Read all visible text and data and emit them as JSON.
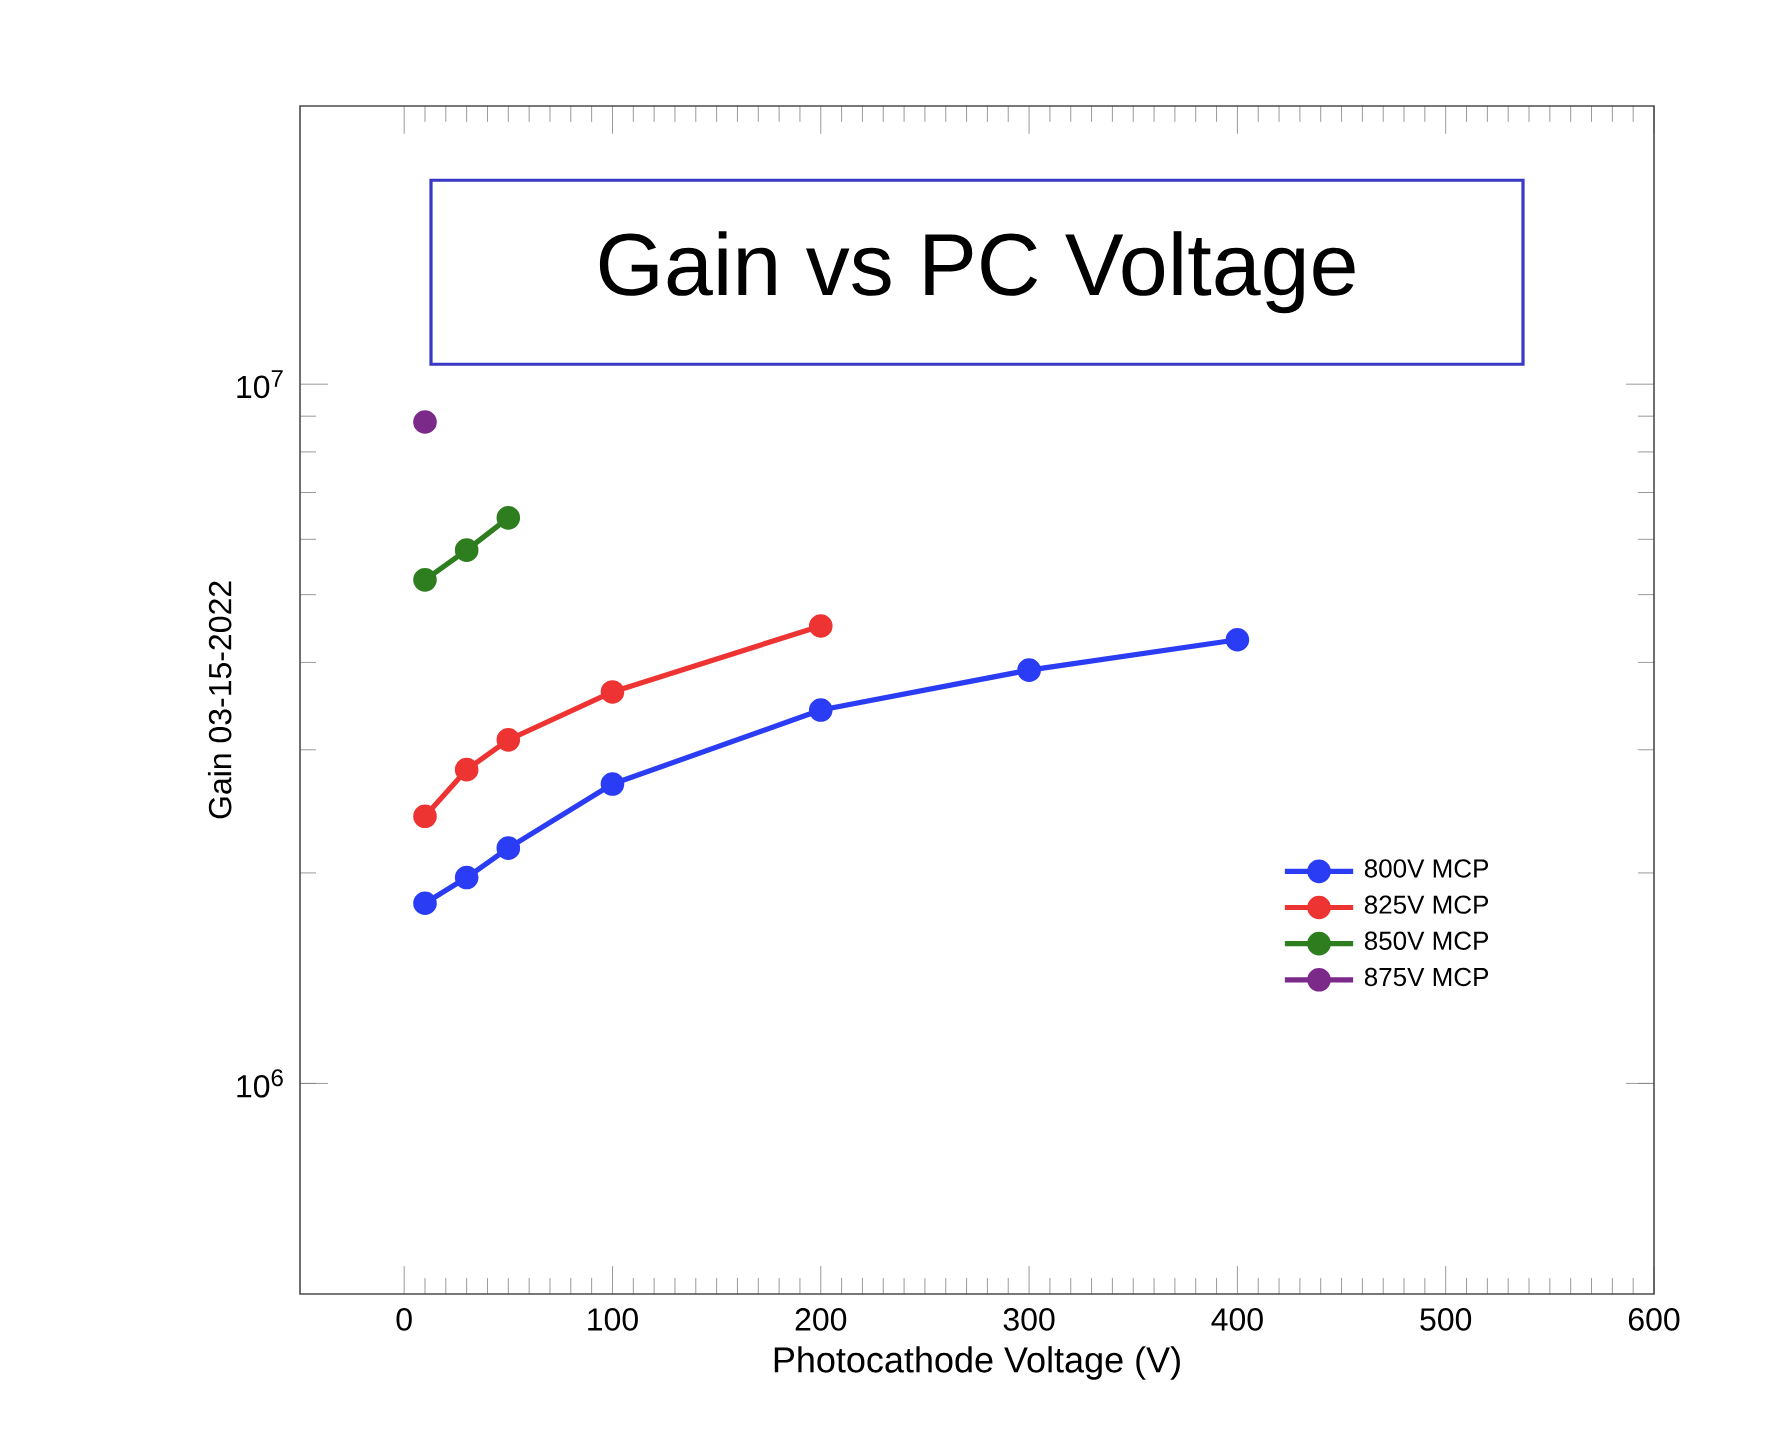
{
  "chart_data": {
    "type": "line",
    "title": "Gain vs PC Voltage",
    "xlabel": "Photocathode Voltage (V)",
    "ylabel": "Gain   03-15-2022",
    "xlim": [
      -50,
      600
    ],
    "xticks": [
      0,
      100,
      200,
      300,
      400,
      500,
      600
    ],
    "ylim": [
      500000,
      25000000
    ],
    "yticks": [
      {
        "value": 1000000,
        "label": "10$^{6}$"
      },
      {
        "value": 10000000,
        "label": "10$^{7}$"
      }
    ],
    "log": "y",
    "legend": "right",
    "marker": "circle",
    "line_style": "solid",
    "grid": false,
    "series": [
      {
        "name": "800V MCP",
        "color": "#2b3cf5",
        "x": [
          10,
          30,
          50,
          100,
          200,
          300,
          400
        ],
        "values": [
          1810000,
          1970000,
          2170000,
          2680000,
          3420000,
          3900000,
          4310000
        ]
      },
      {
        "name": "825V MCP",
        "color": "#ee3333",
        "x": [
          10,
          30,
          50,
          100,
          200
        ],
        "values": [
          2410000,
          2810000,
          3100000,
          3630000,
          4510000
        ]
      },
      {
        "name": "850V MCP",
        "color": "#2e7d1e",
        "x": [
          10,
          30,
          50
        ],
        "values": [
          5250000,
          5790000,
          6440000
        ]
      },
      {
        "name": "875V MCP",
        "color": "#7b2a8a",
        "x": [
          10
        ],
        "values": [
          8830000
        ]
      }
    ]
  }
}
